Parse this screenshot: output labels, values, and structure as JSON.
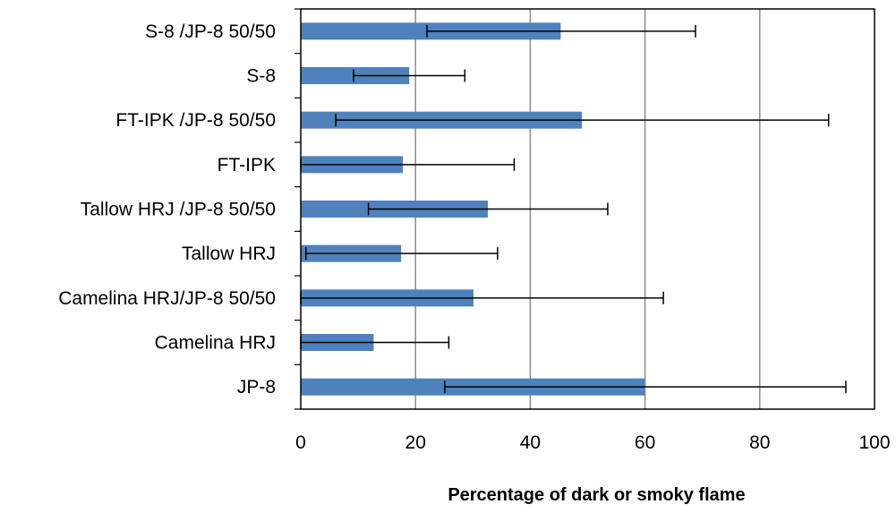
{
  "chart_data": {
    "type": "bar",
    "orientation": "horizontal",
    "title": "",
    "xlabel": "Percentage of dark or smoky flame",
    "ylabel": "",
    "xlim": [
      0,
      100
    ],
    "xticks": [
      0,
      20,
      40,
      60,
      80,
      100
    ],
    "grid": "vertical",
    "legend": "none",
    "bar_color": "#4F81BD",
    "categories": [
      "S-8 /JP-8 50/50",
      "S-8",
      "FT-IPK /JP-8 50/50",
      "FT-IPK",
      "Tallow HRJ /JP-8 50/50",
      "Tallow HRJ",
      "Camelina HRJ/JP-8 50/50",
      "Camelina HRJ",
      "JP-8"
    ],
    "values": [
      45.3,
      18.9,
      49.0,
      17.8,
      32.6,
      17.5,
      30.1,
      12.7,
      60.0
    ],
    "error_low": [
      22.0,
      9.2,
      6.1,
      0.0,
      11.8,
      0.9,
      0.0,
      0.0,
      25.1
    ],
    "error_high": [
      68.8,
      28.6,
      92.0,
      37.2,
      53.5,
      34.3,
      63.2,
      25.8,
      95.0
    ]
  }
}
